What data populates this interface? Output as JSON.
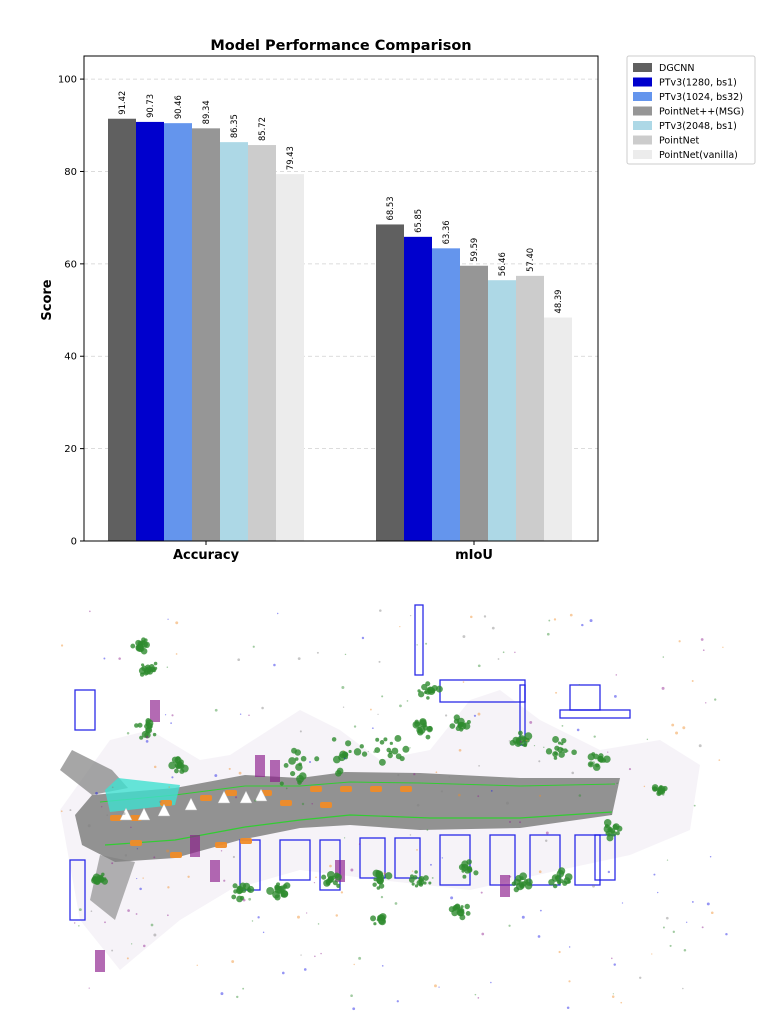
{
  "chart_data": {
    "type": "bar",
    "title": "Model Performance Comparison",
    "xlabel": "",
    "ylabel": "Score",
    "ylim": [
      0,
      105
    ],
    "yticks": [
      0,
      20,
      40,
      60,
      80,
      100
    ],
    "grid": true,
    "legend_position": "outside-top-right",
    "categories": [
      "Accuracy",
      "mIoU"
    ],
    "series": [
      {
        "name": "DGCNN",
        "color": "#606060",
        "values": [
          91.42,
          68.53
        ],
        "labels": [
          "91.42",
          "68.53"
        ]
      },
      {
        "name": "PTv3(1280, bs1)",
        "color": "#0000cd",
        "values": [
          90.73,
          65.85
        ],
        "labels": [
          "90.73",
          "65.85"
        ]
      },
      {
        "name": "PTv3(1024, bs32)",
        "color": "#6495ed",
        "values": [
          90.46,
          63.36
        ],
        "labels": [
          "90.46",
          "63.36"
        ]
      },
      {
        "name": "PointNet++(MSG)",
        "color": "#969696",
        "values": [
          89.34,
          59.59
        ],
        "labels": [
          "89.34",
          "59.59"
        ]
      },
      {
        "name": "PTv3(2048, bs1)",
        "color": "#add8e6",
        "values": [
          86.35,
          56.46
        ],
        "labels": [
          "86.35",
          "56.46"
        ]
      },
      {
        "name": "PointNet",
        "color": "#cccccc",
        "values": [
          85.72,
          57.4
        ],
        "labels": [
          "85.72",
          "57.40"
        ]
      },
      {
        "name": "PointNet(vanilla)",
        "color": "#ececec",
        "values": [
          79.43,
          48.39
        ],
        "labels": [
          "79.43",
          "48.39"
        ]
      }
    ]
  },
  "scene_colors": {
    "road": "#808080",
    "vegetation": "#2e8b2e",
    "building": "#1414e6",
    "vehicle": "#f08c28",
    "lane_marking": "#40e0d0",
    "pole": "#8b1a8b",
    "curb": "#32cd32"
  }
}
